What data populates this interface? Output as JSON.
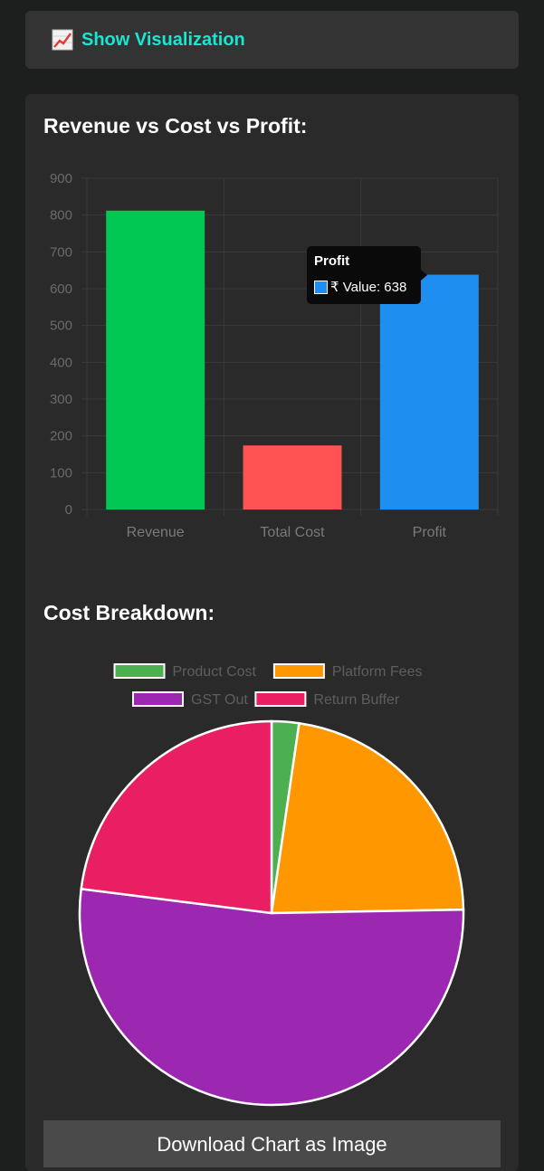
{
  "toggle": {
    "icon": "chart-increasing-icon",
    "label": "Show Visualization"
  },
  "bar_section": {
    "title": "Revenue vs Cost vs Profit:"
  },
  "pie_section": {
    "title": "Cost Breakdown:"
  },
  "tooltip": {
    "title": "Profit",
    "value_text": "₹ Value: 638"
  },
  "download_button": {
    "label": "Download Chart as Image"
  },
  "colors": {
    "accent": "#19e6d0",
    "revenue": "#00c853",
    "total_cost": "#ff5252",
    "profit": "#1e8ff0",
    "product_cost": "#4caf50",
    "platform_fees": "#ff9800",
    "gst_out": "#9c27b0",
    "return_buffer": "#e91e63"
  },
  "chart_data": [
    {
      "type": "bar",
      "title": "Revenue vs Cost vs Profit:",
      "categories": [
        "Revenue",
        "Total Cost",
        "Profit"
      ],
      "values": [
        812,
        174,
        638
      ],
      "bar_colors": [
        "#00c853",
        "#ff5252",
        "#1e8ff0"
      ],
      "yticks": [
        0,
        100,
        200,
        300,
        400,
        500,
        600,
        700,
        800,
        900
      ],
      "ylim": [
        0,
        900
      ],
      "grid": true,
      "xlabel": "",
      "ylabel": ""
    },
    {
      "type": "pie",
      "title": "Cost Breakdown:",
      "labels": [
        "Product Cost",
        "Platform Fees",
        "GST Out",
        "Return Buffer"
      ],
      "values": [
        4,
        39,
        91,
        40
      ],
      "colors": [
        "#4caf50",
        "#ff9800",
        "#9c27b0",
        "#e91e63"
      ],
      "legend": "top"
    }
  ]
}
